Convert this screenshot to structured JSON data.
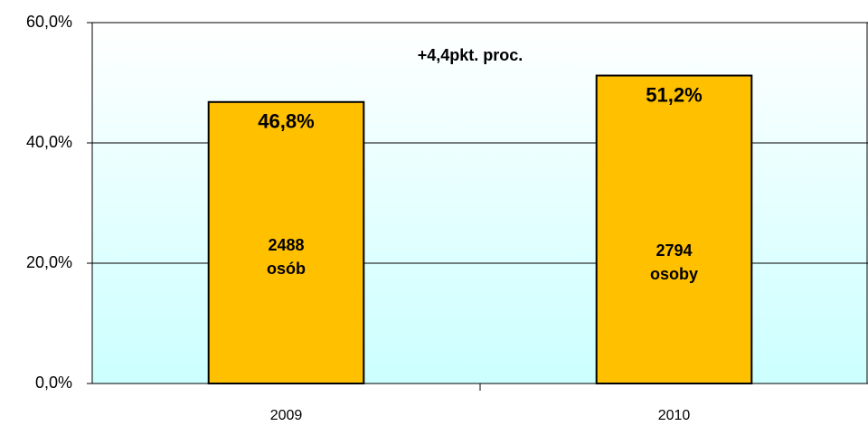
{
  "chart_data": {
    "type": "bar",
    "categories": [
      "2009",
      "2010"
    ],
    "values": [
      46.8,
      51.2
    ],
    "value_labels": [
      "46,8%",
      "51,2%"
    ],
    "inner_labels": [
      [
        "2488",
        "osób"
      ],
      [
        "2794",
        "osoby"
      ]
    ],
    "annotation": "+4,4pkt. proc.",
    "color": "#ffc000",
    "ylim": [
      0,
      60
    ],
    "yticks": [
      {
        "value": 0,
        "label": "0,0%"
      },
      {
        "value": 20,
        "label": "20,0%"
      },
      {
        "value": 40,
        "label": "40,0%"
      },
      {
        "value": 60,
        "label": "60,0%"
      }
    ],
    "grid": true
  }
}
